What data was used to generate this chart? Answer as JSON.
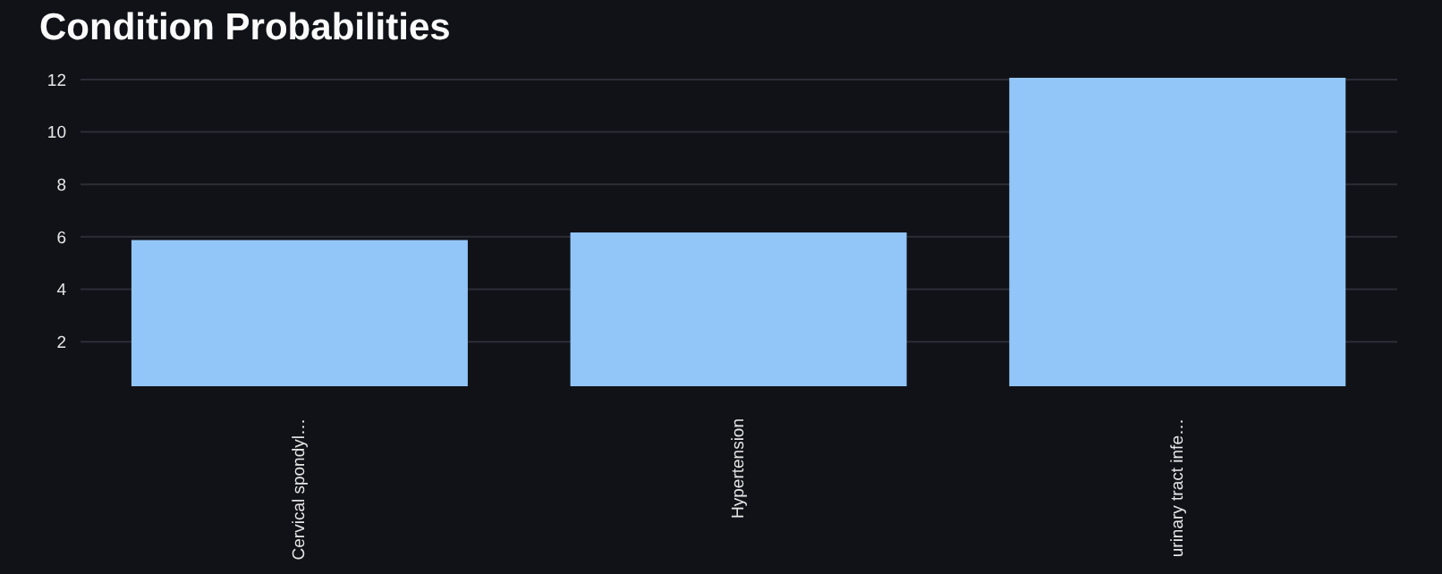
{
  "chart_data": {
    "type": "bar",
    "title": "Condition Probabilities",
    "categories": [
      "Cervical spondyl…",
      "Hypertension",
      "urinary tract infe…"
    ],
    "values": [
      5.88,
      6.17,
      12.07
    ],
    "color": "#93c6f8",
    "ylim": [
      0.3,
      12.1
    ],
    "yticks": [
      2,
      4,
      6,
      8,
      10,
      12
    ],
    "grid": "y",
    "legend": false
  }
}
